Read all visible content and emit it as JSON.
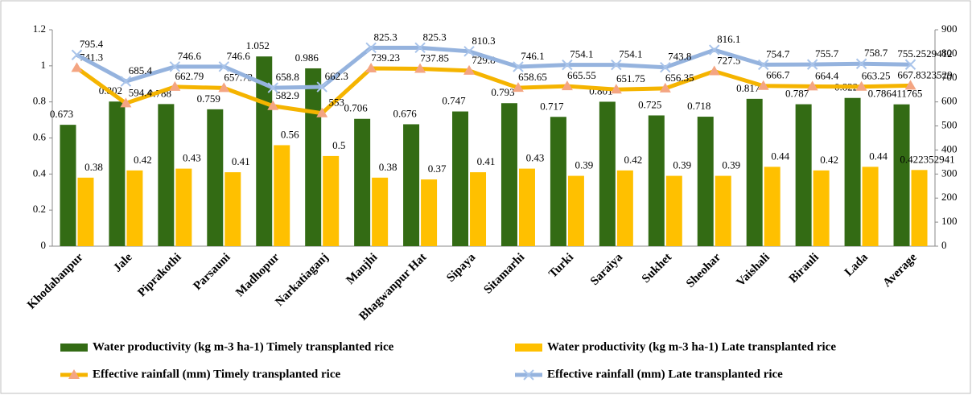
{
  "chart_data": {
    "type": "bar_line",
    "categories": [
      "Khodabanpur",
      "Jale",
      "Piprakothi",
      "Parsauni",
      "Madhopur",
      "Narkatiaganj",
      "Manjhi",
      "Bhagwanpur Hat",
      "Sipaya",
      "Sitamarhi",
      "Turki",
      "Saraiya",
      "Sukhet",
      "Sheohar",
      "Vaishali",
      "Birauli",
      "Lada",
      "Average"
    ],
    "series": [
      {
        "name": "Water productivity (kg m-3 ha-1) Timely transplanted rice",
        "color": "#336b14",
        "type": "bar",
        "values": [
          0.673,
          0.802,
          0.788,
          0.759,
          1.052,
          0.986,
          0.706,
          0.676,
          0.747,
          0.793,
          0.717,
          0.801,
          0.725,
          0.718,
          0.817,
          0.787,
          0.822,
          0.786411765
        ]
      },
      {
        "name": "Water productivity (kg m-3 ha-1) Late transplanted rice",
        "color": "#ffc000",
        "type": "bar",
        "values": [
          0.38,
          0.42,
          0.43,
          0.41,
          0.56,
          0.5,
          0.38,
          0.37,
          0.41,
          0.43,
          0.39,
          0.42,
          0.39,
          0.39,
          0.44,
          0.42,
          0.44,
          0.422352941
        ]
      },
      {
        "name": "Effective rainfall (mm) Timely transplanted rice",
        "color": "#f5b400",
        "marker_color": "#f4a582",
        "type": "line",
        "axis": "y2",
        "values": [
          741.3,
          594.4,
          662.79,
          657.73,
          582.9,
          553,
          739.23,
          737.85,
          729.8,
          658.65,
          665.55,
          651.75,
          656.35,
          727.5,
          666.7,
          664.4,
          663.25,
          667.8323529
        ]
      },
      {
        "name": "Effective rainfall (mm) Late transplanted rice",
        "color": "#95b3de",
        "marker_color": "#a9c4ea",
        "type": "line",
        "axis": "y2",
        "values": [
          795.4,
          685.4,
          746.6,
          746.6,
          658.8,
          662.3,
          825.3,
          825.3,
          810.3,
          746.1,
          754.1,
          754.1,
          743.8,
          816.1,
          754.7,
          755.7,
          758.7,
          755.2529412
        ]
      }
    ],
    "ylim": [
      0,
      1.2
    ],
    "yticks": [
      0,
      0.2,
      0.4,
      0.6,
      0.8,
      1,
      1.2
    ],
    "y2lim": [
      0,
      900
    ],
    "y2ticks": [
      0,
      100,
      200,
      300,
      400,
      500,
      600,
      700,
      800,
      900
    ],
    "grid": false
  }
}
